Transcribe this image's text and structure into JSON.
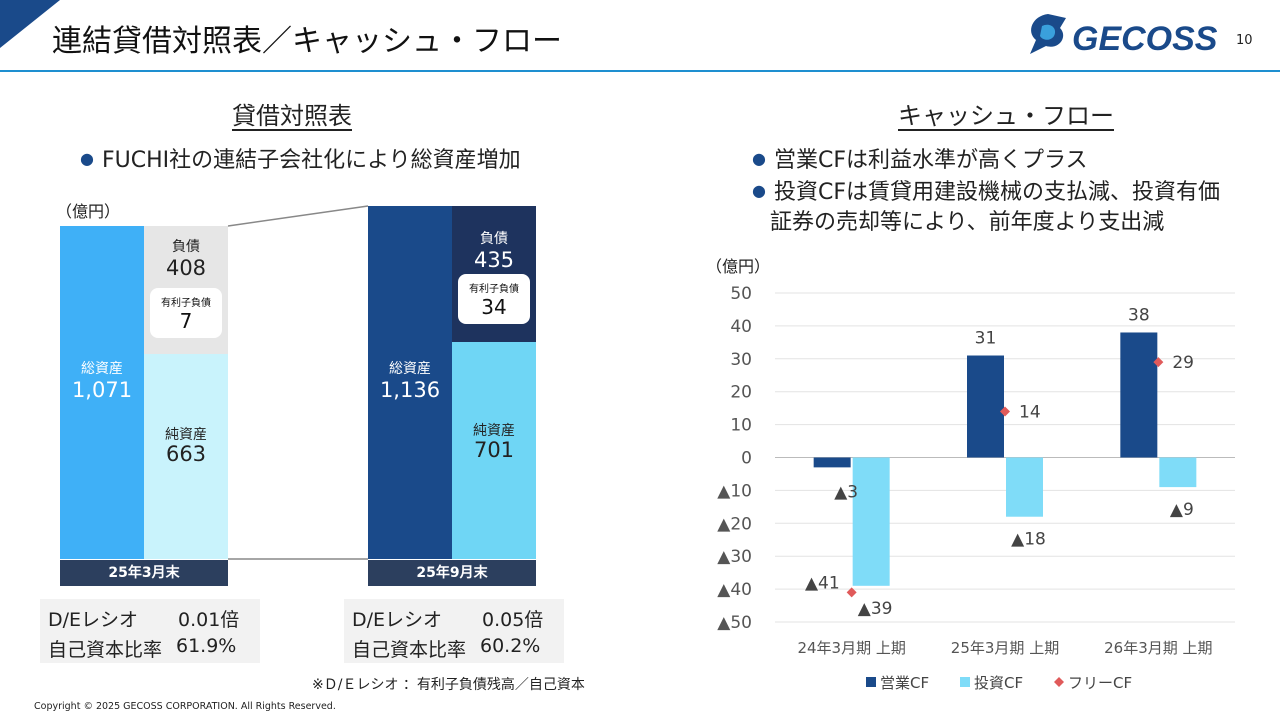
{
  "header": {
    "title": "連結貸借対照表／キャッシュ・フロー",
    "page_number": "10",
    "logo_text": "GECOSS"
  },
  "balance_sheet": {
    "section_title": "貸借対照表",
    "bullet": "FUCHI社の連結子会社化により総資産増加",
    "unit": "（億円）",
    "periods": [
      {
        "label": "25年3月末",
        "total_assets_label": "総資産",
        "total_assets": "1,071",
        "liabilities_label": "負債",
        "liabilities": "408",
        "interest_debt_label": "有利子負債",
        "interest_debt": "7",
        "net_assets_label": "純資産",
        "net_assets": "663",
        "de_label": "D/Eレシオ",
        "de_value": "0.01倍",
        "equity_ratio_label": "自己資本比率",
        "equity_ratio_value": "61.9%"
      },
      {
        "label": "25年9月末",
        "total_assets_label": "総資産",
        "total_assets": "1,136",
        "liabilities_label": "負債",
        "liabilities": "435",
        "interest_debt_label": "有利子負債",
        "interest_debt": "34",
        "net_assets_label": "純資産",
        "net_assets": "701",
        "de_label": "D/Eレシオ",
        "de_value": "0.05倍",
        "equity_ratio_label": "自己資本比率",
        "equity_ratio_value": "60.2%"
      }
    ],
    "note": "※Ｄ/Ｅレシオ ：有利子負債残高／自己資本"
  },
  "cash_flow": {
    "section_title": "キャッシュ・フロー",
    "bullets": [
      "営業CFは利益水準が高くプラス",
      "投資CFは賃貸用建設機械の支払減、投資有価",
      "証券の売却等により、前年度より支出減"
    ],
    "unit": "（億円）"
  },
  "chart_data": {
    "type": "bar",
    "categories": [
      "24年3月期 上期",
      "25年3月期 上期",
      "26年3月期 上期"
    ],
    "series": [
      {
        "name": "営業CF",
        "values": [
          -3,
          31,
          38
        ],
        "labels": [
          "▲3",
          "31",
          "38"
        ],
        "color": "#1a4a8a"
      },
      {
        "name": "投資CF",
        "values": [
          -39,
          -18,
          -9
        ],
        "labels": [
          "▲39",
          "▲18",
          "▲9"
        ],
        "color": "#7fdcf8"
      },
      {
        "name": "フリーCF",
        "values": [
          -41,
          14,
          29
        ],
        "labels": [
          "▲41",
          "14",
          "29"
        ],
        "color": "#e05a5a",
        "kind": "marker"
      }
    ],
    "ylim": [
      -50,
      50
    ],
    "yticks": [
      50,
      40,
      30,
      20,
      10,
      0,
      -10,
      -20,
      -30,
      -40,
      -50
    ],
    "ytick_labels": [
      "50",
      "40",
      "30",
      "20",
      "10",
      "0",
      "▲10",
      "▲20",
      "▲30",
      "▲40",
      "▲50"
    ],
    "grid": true,
    "legend": "bottom"
  },
  "footer": {
    "copyright": "Copyright © 2025 GECOSS CORPORATION. All Rights Reserved."
  }
}
